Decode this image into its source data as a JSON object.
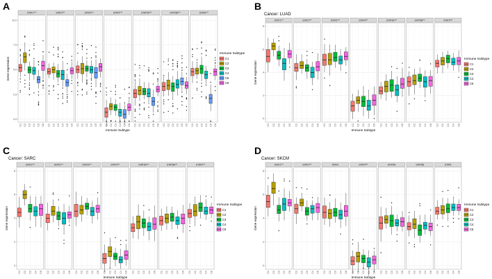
{
  "figure_letters": [
    "A",
    "B",
    "C",
    "D"
  ],
  "subtype_colors": [
    "#F8766D",
    "#B79F00",
    "#00BA38",
    "#00BFC4",
    "#619CFF",
    "#F564E3"
  ],
  "chart_data": [
    {
      "type": "box",
      "panel": "A",
      "title": "",
      "xlabel": "Immune Subtype",
      "ylabel": "Gene expression",
      "legend_title": "Immune Subtype",
      "legend_labels": [
        "C1",
        "C2",
        "C3",
        "C4",
        "C5",
        "C6"
      ],
      "categories": [
        "C1",
        "C2",
        "C3",
        "C4",
        "C5",
        "C6"
      ],
      "ylim": [
        -0.3,
        10.5
      ],
      "yticks": [
        0.0,
        2.5,
        5.0,
        7.5,
        10.0
      ],
      "ytick_labels": [
        "0.0",
        "2.5",
        "5.0",
        "7.5",
        "10.0"
      ],
      "facets": [
        {
          "label": "STAT1***",
          "medians": [
            5.2,
            6.3,
            5.0,
            4.9,
            4.0,
            5.4
          ]
        },
        {
          "label": "STAT2***",
          "medians": [
            4.8,
            5.0,
            4.6,
            4.5,
            3.7,
            4.9
          ]
        },
        {
          "label": "STAT3***",
          "medians": [
            5.0,
            5.1,
            5.1,
            5.0,
            4.7,
            5.3
          ]
        },
        {
          "label": "STAT4***",
          "medians": [
            0.7,
            1.3,
            1.2,
            0.7,
            0.5,
            1.2
          ]
        },
        {
          "label": "STAT5A***",
          "medians": [
            2.6,
            2.9,
            2.8,
            2.6,
            1.8,
            3.0
          ]
        },
        {
          "label": "STAT5B***",
          "medians": [
            3.3,
            3.4,
            3.3,
            3.5,
            3.8,
            3.4
          ]
        },
        {
          "label": "STAT6***",
          "medians": [
            4.8,
            4.9,
            5.1,
            4.5,
            2.1,
            4.8
          ]
        }
      ]
    },
    {
      "type": "box",
      "panel": "B",
      "title": "Cancer: LUAD",
      "xlabel": "Immune Subtype",
      "ylabel": "Gene expression",
      "legend_title": "Immune Subtype",
      "legend_labels": [
        "C1",
        "C2",
        "C3",
        "C4",
        "C6"
      ],
      "categories": [
        "C1",
        "C2",
        "C3",
        "C4",
        "C6"
      ],
      "ylim": [
        -0.3,
        8.3
      ],
      "yticks": [
        0,
        2,
        4,
        6,
        8
      ],
      "ytick_labels": [
        "0",
        "2",
        "4",
        "6",
        "8"
      ],
      "facets": [
        {
          "label": "STAT1***",
          "medians": [
            5.4,
            6.3,
            5.5,
            4.8,
            5.6
          ]
        },
        {
          "label": "STAT2***",
          "medians": [
            4.4,
            4.6,
            4.4,
            4.0,
            4.5
          ]
        },
        {
          "label": "STAT3***",
          "medians": [
            5.1,
            5.1,
            5.3,
            5.1,
            5.4
          ]
        },
        {
          "label": "STAT4***",
          "medians": [
            1.1,
            1.6,
            1.5,
            1.1,
            1.6
          ]
        },
        {
          "label": "STAT5A***",
          "medians": [
            2.4,
            2.8,
            2.9,
            2.5,
            3.0
          ]
        },
        {
          "label": "STAT5B***",
          "medians": [
            3.2,
            3.3,
            3.5,
            3.2,
            3.3
          ]
        },
        {
          "label": "STAT6***",
          "medians": [
            4.8,
            5.0,
            5.2,
            4.9,
            5.0
          ]
        }
      ]
    },
    {
      "type": "box",
      "panel": "C",
      "title": "Cancer: SARC",
      "xlabel": "Immune Subtype",
      "ylabel": "Gene expression",
      "legend_title": "Immune Subtype",
      "legend_labels": [
        "C1",
        "C2",
        "C3",
        "C4",
        "C6"
      ],
      "categories": [
        "C1",
        "C2",
        "C3",
        "C4",
        "C6"
      ],
      "ylim": [
        -0.3,
        8.3
      ],
      "yticks": [
        0,
        2,
        4,
        6,
        8
      ],
      "ytick_labels": [
        "0",
        "2",
        "4",
        "6",
        "8"
      ],
      "facets": [
        {
          "label": "STAT1***",
          "medians": [
            4.5,
            6.0,
            4.8,
            4.6,
            4.8
          ]
        },
        {
          "label": "STAT2***",
          "medians": [
            4.0,
            4.6,
            4.2,
            4.0,
            4.3
          ]
        },
        {
          "label": "STAT3***",
          "medians": [
            4.6,
            4.7,
            5.0,
            4.6,
            4.8
          ]
        },
        {
          "label": "STAT4***",
          "medians": [
            0.6,
            1.2,
            0.8,
            0.5,
            0.9
          ]
        },
        {
          "label": "STAT5A***",
          "medians": [
            3.2,
            3.7,
            3.6,
            3.3,
            3.5
          ]
        },
        {
          "label": "STAT5B***",
          "medians": [
            3.8,
            4.0,
            4.1,
            3.8,
            4.0
          ]
        },
        {
          "label": "STAT6***",
          "medians": [
            4.4,
            4.6,
            4.9,
            4.6,
            4.7
          ]
        }
      ]
    },
    {
      "type": "box",
      "panel": "D",
      "title": "Cancer: SKCM",
      "xlabel": "Immune Subtype",
      "ylabel": "Gene expression",
      "legend_title": "Immune Subtype",
      "legend_labels": [
        "C1",
        "C2",
        "C3",
        "C4",
        "C6"
      ],
      "categories": [
        "C1",
        "C2",
        "C3",
        "C4",
        "C6"
      ],
      "ylim": [
        -0.3,
        8.3
      ],
      "yticks": [
        0,
        2,
        4,
        6,
        8
      ],
      "ytick_labels": [
        "0",
        "2",
        "4",
        "6",
        "8"
      ],
      "facets": [
        {
          "label": "STAT1***",
          "medians": [
            5.4,
            6.5,
            4.7,
            5.2,
            5.3
          ]
        },
        {
          "label": "STAT2***",
          "medians": [
            4.8,
            5.3,
            4.6,
            4.8,
            4.9
          ]
        },
        {
          "label": "STAT3",
          "medians": [
            4.5,
            4.4,
            4.5,
            4.3,
            4.6
          ]
        },
        {
          "label": "STAT4***",
          "medians": [
            0.4,
            0.8,
            0.6,
            0.3,
            0.5
          ]
        },
        {
          "label": "STAT5A",
          "medians": [
            3.6,
            3.9,
            3.8,
            3.6,
            3.7
          ]
        },
        {
          "label": "STAT5B",
          "medians": [
            3.3,
            3.5,
            3.0,
            3.4,
            3.3
          ]
        },
        {
          "label": "STAT6",
          "medians": [
            4.6,
            4.7,
            4.8,
            4.9,
            4.9
          ]
        }
      ]
    }
  ]
}
